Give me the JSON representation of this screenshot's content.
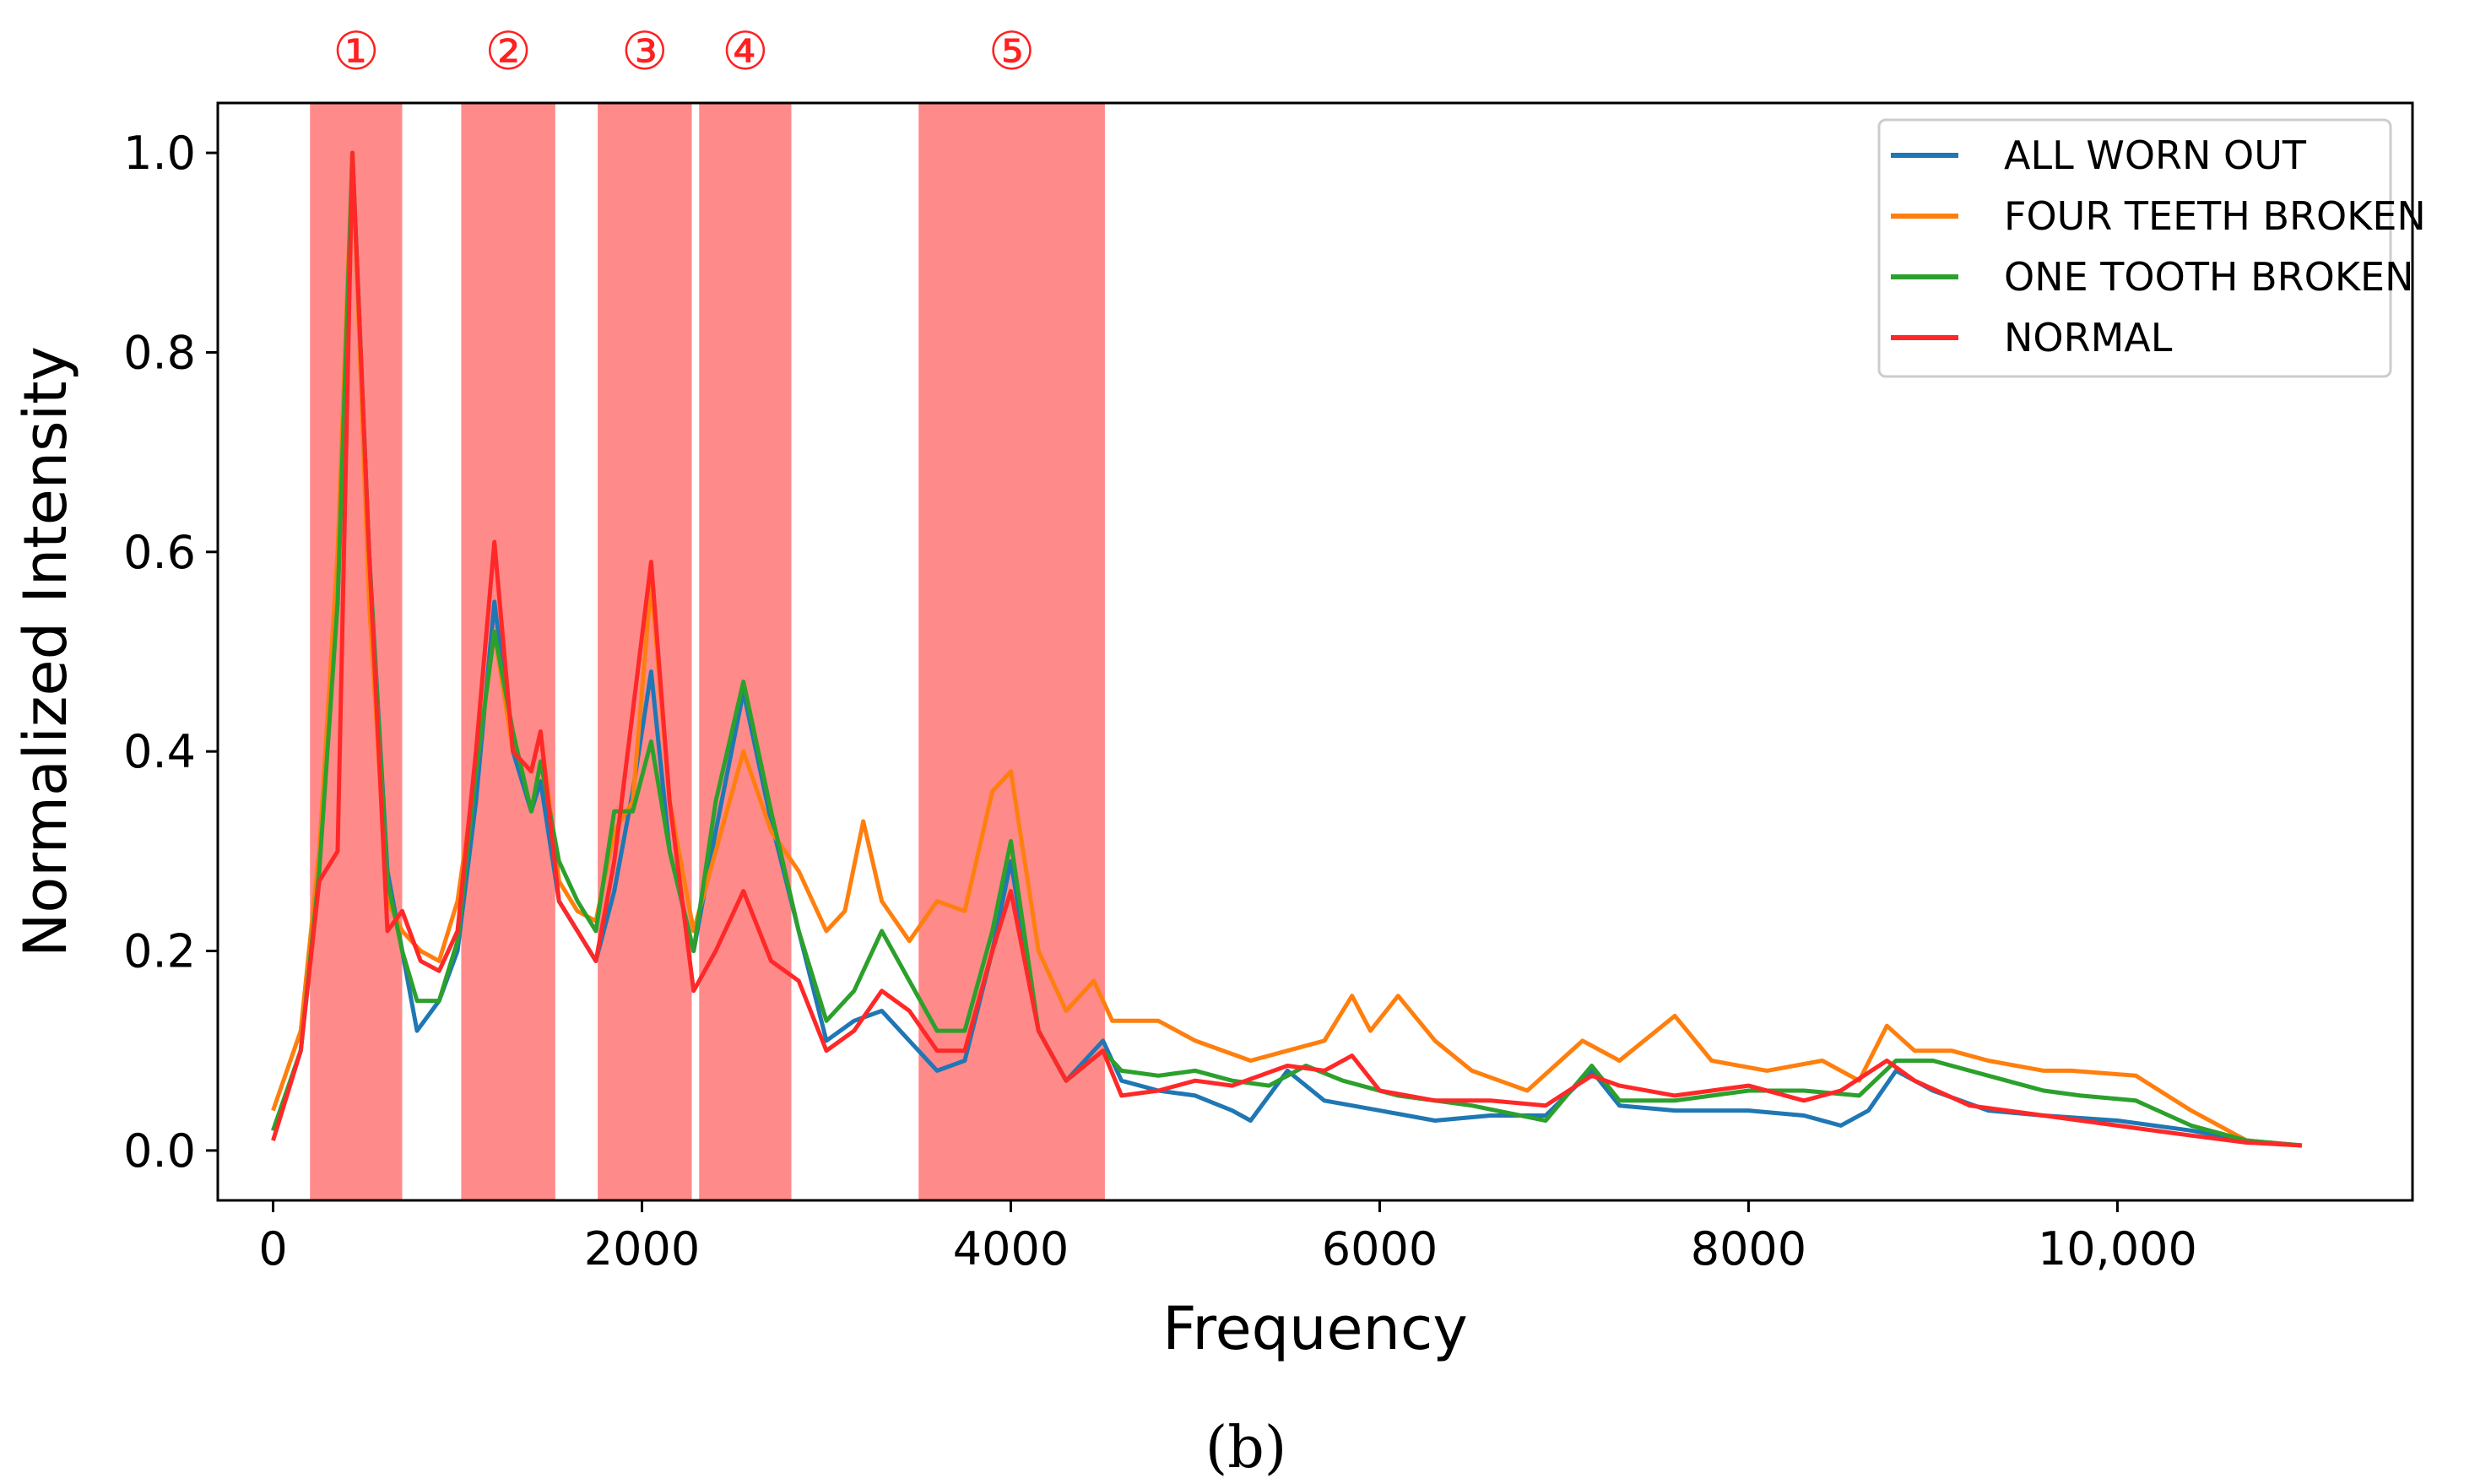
{
  "chart_data": {
    "type": "line",
    "title": "",
    "xlabel": "Frequency",
    "ylabel": "Normalized Intensity",
    "xlim": [
      -300,
      11600
    ],
    "ylim": [
      -0.05,
      1.05
    ],
    "x_ticks": [
      0,
      2000,
      4000,
      6000,
      8000,
      10000
    ],
    "x_tick_labels": [
      "0",
      "2000",
      "4000",
      "6000",
      "8000",
      "10,000"
    ],
    "y_ticks": [
      0.0,
      0.2,
      0.4,
      0.6,
      0.8,
      1.0
    ],
    "y_tick_labels": [
      "0.0",
      "0.2",
      "0.4",
      "0.6",
      "0.8",
      "1.0"
    ],
    "legend_position": "top-right",
    "caption": "(b)",
    "band_color": "#ff8a8a",
    "bands": [
      {
        "label": "①",
        "x0": 200,
        "x1": 700
      },
      {
        "label": "②",
        "x0": 1020,
        "x1": 1530
      },
      {
        "label": "③",
        "x0": 1760,
        "x1": 2270
      },
      {
        "label": "④",
        "x0": 2310,
        "x1": 2810
      },
      {
        "label": "⑤",
        "x0": 3500,
        "x1": 4510
      }
    ],
    "series": [
      {
        "name": "ALL WORN OUT",
        "color": "#1f77b4",
        "points": [
          [
            0,
            0.02
          ],
          [
            150,
            0.1
          ],
          [
            250,
            0.3
          ],
          [
            350,
            0.55
          ],
          [
            430,
            1.0
          ],
          [
            520,
            0.6
          ],
          [
            620,
            0.28
          ],
          [
            700,
            0.2
          ],
          [
            780,
            0.12
          ],
          [
            900,
            0.15
          ],
          [
            1000,
            0.2
          ],
          [
            1100,
            0.35
          ],
          [
            1200,
            0.55
          ],
          [
            1300,
            0.4
          ],
          [
            1400,
            0.34
          ],
          [
            1450,
            0.37
          ],
          [
            1550,
            0.25
          ],
          [
            1650,
            0.22
          ],
          [
            1750,
            0.19
          ],
          [
            1850,
            0.26
          ],
          [
            1950,
            0.36
          ],
          [
            2050,
            0.48
          ],
          [
            2150,
            0.3
          ],
          [
            2280,
            0.2
          ],
          [
            2400,
            0.32
          ],
          [
            2550,
            0.46
          ],
          [
            2700,
            0.33
          ],
          [
            2850,
            0.22
          ],
          [
            3000,
            0.11
          ],
          [
            3150,
            0.13
          ],
          [
            3300,
            0.14
          ],
          [
            3450,
            0.11
          ],
          [
            3600,
            0.08
          ],
          [
            3750,
            0.09
          ],
          [
            3900,
            0.2
          ],
          [
            4000,
            0.29
          ],
          [
            4150,
            0.12
          ],
          [
            4300,
            0.07
          ],
          [
            4500,
            0.11
          ],
          [
            4600,
            0.07
          ],
          [
            4800,
            0.06
          ],
          [
            5000,
            0.055
          ],
          [
            5200,
            0.04
          ],
          [
            5300,
            0.03
          ],
          [
            5500,
            0.08
          ],
          [
            5700,
            0.05
          ],
          [
            6000,
            0.04
          ],
          [
            6300,
            0.03
          ],
          [
            6600,
            0.035
          ],
          [
            6900,
            0.035
          ],
          [
            7150,
            0.08
          ],
          [
            7300,
            0.045
          ],
          [
            7600,
            0.04
          ],
          [
            8000,
            0.04
          ],
          [
            8300,
            0.035
          ],
          [
            8500,
            0.025
          ],
          [
            8650,
            0.04
          ],
          [
            8800,
            0.08
          ],
          [
            9000,
            0.06
          ],
          [
            9300,
            0.04
          ],
          [
            9600,
            0.035
          ],
          [
            10000,
            0.03
          ],
          [
            10400,
            0.02
          ],
          [
            10700,
            0.01
          ],
          [
            11000,
            0.005
          ]
        ]
      },
      {
        "name": "FOUR TEETH BROKEN",
        "color": "#ff7f0e",
        "points": [
          [
            0,
            0.04
          ],
          [
            150,
            0.12
          ],
          [
            250,
            0.3
          ],
          [
            350,
            0.6
          ],
          [
            430,
            1.0
          ],
          [
            520,
            0.55
          ],
          [
            620,
            0.25
          ],
          [
            700,
            0.22
          ],
          [
            800,
            0.2
          ],
          [
            900,
            0.19
          ],
          [
            1000,
            0.25
          ],
          [
            1100,
            0.38
          ],
          [
            1200,
            0.52
          ],
          [
            1300,
            0.4
          ],
          [
            1400,
            0.38
          ],
          [
            1450,
            0.42
          ],
          [
            1550,
            0.27
          ],
          [
            1650,
            0.24
          ],
          [
            1750,
            0.23
          ],
          [
            1850,
            0.32
          ],
          [
            1950,
            0.35
          ],
          [
            2050,
            0.57
          ],
          [
            2150,
            0.35
          ],
          [
            2280,
            0.22
          ],
          [
            2400,
            0.3
          ],
          [
            2550,
            0.4
          ],
          [
            2700,
            0.32
          ],
          [
            2850,
            0.28
          ],
          [
            3000,
            0.22
          ],
          [
            3100,
            0.24
          ],
          [
            3200,
            0.33
          ],
          [
            3300,
            0.25
          ],
          [
            3450,
            0.21
          ],
          [
            3600,
            0.25
          ],
          [
            3750,
            0.24
          ],
          [
            3900,
            0.36
          ],
          [
            4000,
            0.38
          ],
          [
            4150,
            0.2
          ],
          [
            4300,
            0.14
          ],
          [
            4450,
            0.17
          ],
          [
            4550,
            0.13
          ],
          [
            4800,
            0.13
          ],
          [
            5000,
            0.11
          ],
          [
            5300,
            0.09
          ],
          [
            5500,
            0.1
          ],
          [
            5700,
            0.11
          ],
          [
            5850,
            0.155
          ],
          [
            5950,
            0.12
          ],
          [
            6100,
            0.155
          ],
          [
            6300,
            0.11
          ],
          [
            6500,
            0.08
          ],
          [
            6800,
            0.06
          ],
          [
            7100,
            0.11
          ],
          [
            7300,
            0.09
          ],
          [
            7600,
            0.135
          ],
          [
            7800,
            0.09
          ],
          [
            8100,
            0.08
          ],
          [
            8400,
            0.09
          ],
          [
            8600,
            0.07
          ],
          [
            8750,
            0.125
          ],
          [
            8900,
            0.1
          ],
          [
            9100,
            0.1
          ],
          [
            9300,
            0.09
          ],
          [
            9600,
            0.08
          ],
          [
            9750,
            0.08
          ],
          [
            10100,
            0.075
          ],
          [
            10400,
            0.04
          ],
          [
            10700,
            0.01
          ],
          [
            11000,
            0.005
          ]
        ]
      },
      {
        "name": "ONE TOOTH BROKEN",
        "color": "#2ca02c",
        "points": [
          [
            0,
            0.02
          ],
          [
            150,
            0.1
          ],
          [
            250,
            0.28
          ],
          [
            350,
            0.55
          ],
          [
            430,
            1.0
          ],
          [
            520,
            0.6
          ],
          [
            620,
            0.27
          ],
          [
            700,
            0.2
          ],
          [
            780,
            0.15
          ],
          [
            900,
            0.15
          ],
          [
            1000,
            0.21
          ],
          [
            1100,
            0.38
          ],
          [
            1200,
            0.52
          ],
          [
            1300,
            0.42
          ],
          [
            1400,
            0.34
          ],
          [
            1450,
            0.39
          ],
          [
            1550,
            0.29
          ],
          [
            1650,
            0.25
          ],
          [
            1750,
            0.22
          ],
          [
            1850,
            0.34
          ],
          [
            1950,
            0.34
          ],
          [
            2050,
            0.41
          ],
          [
            2150,
            0.3
          ],
          [
            2280,
            0.2
          ],
          [
            2400,
            0.35
          ],
          [
            2550,
            0.47
          ],
          [
            2700,
            0.34
          ],
          [
            2850,
            0.22
          ],
          [
            3000,
            0.13
          ],
          [
            3150,
            0.16
          ],
          [
            3300,
            0.22
          ],
          [
            3450,
            0.17
          ],
          [
            3600,
            0.12
          ],
          [
            3750,
            0.12
          ],
          [
            3900,
            0.22
          ],
          [
            4000,
            0.31
          ],
          [
            4150,
            0.12
          ],
          [
            4300,
            0.07
          ],
          [
            4500,
            0.1
          ],
          [
            4600,
            0.08
          ],
          [
            4800,
            0.075
          ],
          [
            5000,
            0.08
          ],
          [
            5200,
            0.07
          ],
          [
            5400,
            0.065
          ],
          [
            5600,
            0.085
          ],
          [
            5800,
            0.07
          ],
          [
            6100,
            0.055
          ],
          [
            6500,
            0.045
          ],
          [
            6900,
            0.03
          ],
          [
            7150,
            0.085
          ],
          [
            7300,
            0.05
          ],
          [
            7600,
            0.05
          ],
          [
            8000,
            0.06
          ],
          [
            8300,
            0.06
          ],
          [
            8600,
            0.055
          ],
          [
            8800,
            0.09
          ],
          [
            9000,
            0.09
          ],
          [
            9300,
            0.075
          ],
          [
            9600,
            0.06
          ],
          [
            9800,
            0.055
          ],
          [
            10100,
            0.05
          ],
          [
            10400,
            0.025
          ],
          [
            10700,
            0.01
          ],
          [
            11000,
            0.005
          ]
        ]
      },
      {
        "name": "NORMAL",
        "color": "#ff2828",
        "points": [
          [
            0,
            0.01
          ],
          [
            150,
            0.1
          ],
          [
            250,
            0.27
          ],
          [
            350,
            0.3
          ],
          [
            430,
            1.0
          ],
          [
            520,
            0.6
          ],
          [
            620,
            0.22
          ],
          [
            700,
            0.24
          ],
          [
            800,
            0.19
          ],
          [
            900,
            0.18
          ],
          [
            1000,
            0.22
          ],
          [
            1100,
            0.4
          ],
          [
            1200,
            0.61
          ],
          [
            1300,
            0.4
          ],
          [
            1400,
            0.38
          ],
          [
            1450,
            0.42
          ],
          [
            1550,
            0.25
          ],
          [
            1650,
            0.22
          ],
          [
            1750,
            0.19
          ],
          [
            1850,
            0.29
          ],
          [
            1950,
            0.44
          ],
          [
            2050,
            0.59
          ],
          [
            2150,
            0.35
          ],
          [
            2280,
            0.16
          ],
          [
            2400,
            0.2
          ],
          [
            2550,
            0.26
          ],
          [
            2700,
            0.19
          ],
          [
            2850,
            0.17
          ],
          [
            3000,
            0.1
          ],
          [
            3150,
            0.12
          ],
          [
            3300,
            0.16
          ],
          [
            3450,
            0.14
          ],
          [
            3600,
            0.1
          ],
          [
            3750,
            0.1
          ],
          [
            3900,
            0.2
          ],
          [
            4000,
            0.26
          ],
          [
            4150,
            0.12
          ],
          [
            4300,
            0.07
          ],
          [
            4500,
            0.1
          ],
          [
            4600,
            0.055
          ],
          [
            4800,
            0.06
          ],
          [
            5000,
            0.07
          ],
          [
            5200,
            0.065
          ],
          [
            5500,
            0.085
          ],
          [
            5700,
            0.08
          ],
          [
            5850,
            0.095
          ],
          [
            6000,
            0.06
          ],
          [
            6300,
            0.05
          ],
          [
            6600,
            0.05
          ],
          [
            6900,
            0.045
          ],
          [
            7150,
            0.075
          ],
          [
            7300,
            0.065
          ],
          [
            7600,
            0.055
          ],
          [
            8000,
            0.065
          ],
          [
            8300,
            0.05
          ],
          [
            8500,
            0.06
          ],
          [
            8750,
            0.09
          ],
          [
            8900,
            0.07
          ],
          [
            9200,
            0.045
          ],
          [
            9600,
            0.035
          ],
          [
            10000,
            0.025
          ],
          [
            10400,
            0.015
          ],
          [
            10700,
            0.008
          ],
          [
            11000,
            0.005
          ]
        ]
      }
    ]
  }
}
